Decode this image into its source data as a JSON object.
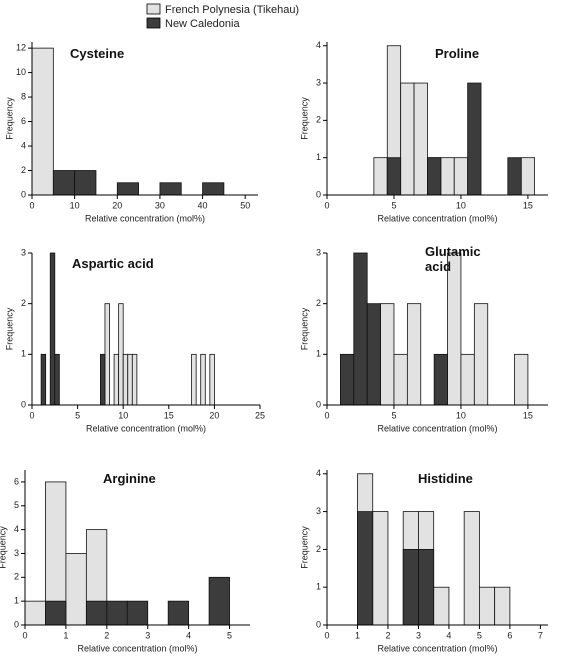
{
  "chart_data": [
    {
      "type": "histogram",
      "title": "Cysteine",
      "xlabel": "Relative concentration (mol%)",
      "ylabel": "Frequency",
      "xlim": [
        0,
        53
      ],
      "xticks": [
        0,
        10,
        20,
        30,
        40,
        50
      ],
      "ylim": [
        0,
        12.5
      ],
      "yticks": [
        0,
        2,
        4,
        6,
        8,
        10,
        12
      ],
      "series": [
        {
          "name": "French Polynesia (Tikehau)",
          "color": "#e2e2e2",
          "bins": [
            0,
            5
          ],
          "values": [
            12
          ]
        },
        {
          "name": "New Caledonia",
          "color": "#3c3c3c",
          "bins": [
            5,
            10,
            15,
            20,
            25,
            30,
            35,
            40,
            45
          ],
          "values": [
            2,
            2,
            0,
            1,
            0,
            1,
            0,
            1
          ]
        }
      ]
    },
    {
      "type": "histogram",
      "title": "Proline",
      "xlabel": "Relative concentration (mol%)",
      "ylabel": "Frequency",
      "xlim": [
        0,
        16.5
      ],
      "xticks": [
        0,
        5,
        10,
        15
      ],
      "ylim": [
        0,
        4.1
      ],
      "yticks": [
        0,
        1,
        2,
        3,
        4
      ],
      "series": [
        {
          "color": "#e2e2e2",
          "bins": [
            3.5,
            4.5,
            5.5,
            6.5,
            7.5,
            8.5,
            9.5,
            10.5,
            11.5,
            12.5,
            13.5,
            14.5,
            15.5
          ],
          "values": [
            1,
            4,
            3,
            3,
            1,
            1,
            1,
            0,
            0,
            0,
            0,
            1
          ]
        },
        {
          "color": "#3c3c3c",
          "bins": [
            4.5,
            5.5,
            6.5,
            7.5,
            8.5,
            9.5,
            10.5,
            11.5,
            12.5,
            13.5,
            14.5,
            15.5
          ],
          "values": [
            1,
            0,
            0,
            1,
            0,
            0,
            3,
            0,
            0,
            1,
            0
          ]
        }
      ]
    },
    {
      "type": "histogram",
      "title": "Aspartic acid",
      "xlabel": "Relative concentration (mol%)",
      "ylabel": "Frequency",
      "xlim": [
        0,
        25
      ],
      "xticks": [
        0,
        5,
        10,
        15,
        20,
        25
      ],
      "ylim": [
        0,
        3
      ],
      "yticks": [
        0,
        1,
        2,
        3
      ],
      "series": [
        {
          "color": "#e2e2e2",
          "bins": [
            8,
            8.5,
            9,
            9.5,
            10,
            10.5,
            11,
            11.5,
            12,
            12.5,
            13,
            13.5,
            14,
            14.5,
            15,
            15.5,
            16,
            16.5,
            17,
            17.5,
            18,
            18.5,
            19,
            19.5,
            20
          ],
          "values": [
            2,
            0,
            1,
            2,
            1,
            1,
            1,
            0,
            0,
            0,
            0,
            0,
            0,
            0,
            0,
            0,
            0,
            0,
            0,
            1,
            0,
            1,
            0,
            1
          ]
        },
        {
          "color": "#3c3c3c",
          "bins": [
            1,
            1.5,
            2,
            2.5,
            3,
            3.5,
            4,
            4.5,
            5,
            5.5,
            6,
            6.5,
            7,
            7.5,
            8
          ],
          "values": [
            1,
            0,
            3,
            1,
            0,
            0,
            0,
            0,
            0,
            0,
            0,
            0,
            0,
            1
          ]
        }
      ]
    },
    {
      "type": "histogram",
      "title": "Glutamic acid",
      "xlabel": "Relative concentration (mol%)",
      "ylabel": "Frequency",
      "xlim": [
        0,
        16.5
      ],
      "xticks": [
        0,
        5,
        10,
        15
      ],
      "ylim": [
        0,
        3
      ],
      "yticks": [
        0,
        1,
        2,
        3
      ],
      "series": [
        {
          "color": "#e2e2e2",
          "bins": [
            4,
            5,
            6,
            7,
            8,
            9,
            10,
            11,
            12,
            13,
            14,
            15
          ],
          "values": [
            2,
            1,
            2,
            0,
            0,
            3,
            1,
            2,
            0,
            0,
            1
          ]
        },
        {
          "color": "#3c3c3c",
          "bins": [
            1,
            2,
            3,
            4,
            5,
            6,
            7,
            8,
            9
          ],
          "values": [
            1,
            3,
            2,
            0,
            0,
            0,
            0,
            1
          ]
        }
      ]
    },
    {
      "type": "histogram",
      "title": "Arginine",
      "xlabel": "Relative concentration (mol%)",
      "ylabel": "Frequency",
      "xlim": [
        0,
        5.5
      ],
      "xticks": [
        0,
        1,
        2,
        3,
        4,
        5
      ],
      "ylim": [
        0,
        6.5
      ],
      "yticks": [
        0,
        1,
        2,
        3,
        4,
        5,
        6
      ],
      "series": [
        {
          "color": "#e2e2e2",
          "bins": [
            0,
            0.5,
            1,
            1.5,
            2
          ],
          "values": [
            1,
            6,
            3,
            4
          ]
        },
        {
          "color": "#3c3c3c",
          "bins": [
            0.5,
            1,
            1.5,
            2,
            2.5,
            3,
            3.5,
            4,
            4.5,
            5
          ],
          "values": [
            1,
            0,
            1,
            1,
            1,
            0,
            1,
            0,
            2
          ]
        }
      ]
    },
    {
      "type": "histogram",
      "title": "Histidine",
      "xlabel": "Relative concentration (mol%)",
      "ylabel": "Frequency",
      "xlim": [
        0,
        7.25
      ],
      "xticks": [
        0,
        1,
        2,
        3,
        4,
        5,
        6,
        7
      ],
      "ylim": [
        0,
        4.1
      ],
      "yticks": [
        0,
        1,
        2,
        3,
        4
      ],
      "series": [
        {
          "color": "#e2e2e2",
          "bins": [
            1,
            1.5,
            2,
            2.5,
            3,
            3.5,
            4,
            4.5,
            5,
            5.5,
            6
          ],
          "values": [
            4,
            3,
            0,
            3,
            3,
            1,
            0,
            3,
            1,
            1
          ]
        },
        {
          "color": "#3c3c3c",
          "bins": [
            1,
            1.5,
            2,
            2.5,
            3,
            3.5
          ],
          "values": [
            3,
            0,
            0,
            2,
            2
          ]
        }
      ]
    }
  ]
}
